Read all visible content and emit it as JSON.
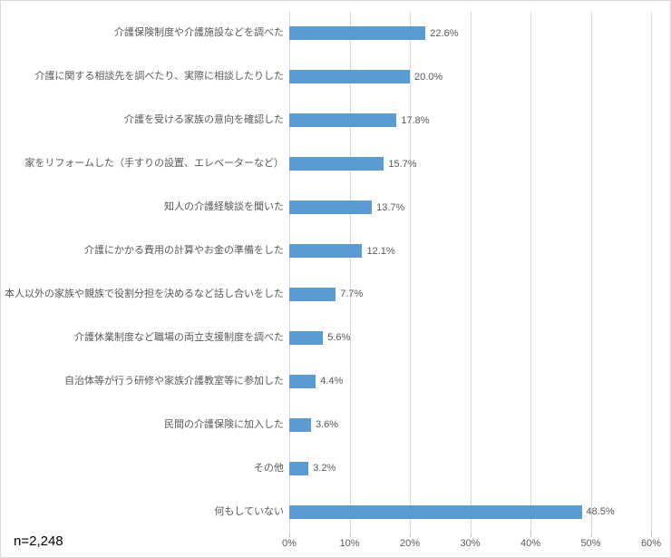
{
  "chart_data": {
    "type": "bar",
    "orientation": "horizontal",
    "title": "",
    "xlabel": "",
    "ylabel": "",
    "categories": [
      "介護保険制度や介護施設などを調べた",
      "介護に関する相談先を調べたり、実際に相談したりした",
      "介護を受ける家族の意向を確認した",
      "家をリフォームした（手すりの設置、エレベーターなど）",
      "知人の介護経験談を聞いた",
      "介護にかかる費用の計算やお金の準備をした",
      "本人以外の家族や親族で役割分担を決めるなど話し合いをした",
      "介護休業制度など職場の両立支援制度を調べた",
      "自治体等が行う研修や家族介護教室等に参加した",
      "民間の介護保険に加入した",
      "その他",
      "何もしていない"
    ],
    "values": [
      22.6,
      20.0,
      17.8,
      15.7,
      13.7,
      12.1,
      7.7,
      5.6,
      4.4,
      3.6,
      3.2,
      48.5
    ],
    "value_labels": [
      "22.6%",
      "20.0%",
      "17.8%",
      "15.7%",
      "13.7%",
      "12.1%",
      "7.7%",
      "5.6%",
      "4.4%",
      "3.6%",
      "3.2%",
      "48.5%"
    ],
    "xlim": [
      0,
      60
    ],
    "x_ticks": [
      "0%",
      "10%",
      "20%",
      "30%",
      "40%",
      "50%",
      "60%"
    ],
    "x_tick_values": [
      0,
      10,
      20,
      30,
      40,
      50,
      60
    ],
    "grid": "vertical",
    "legend": "none",
    "n_label": "n=2,248"
  },
  "colors": {
    "bar": "#5b9bd5",
    "label": "#595959",
    "gridline": "#d9d9d9",
    "n_label": "#000000",
    "border": "#d9d9d9"
  }
}
